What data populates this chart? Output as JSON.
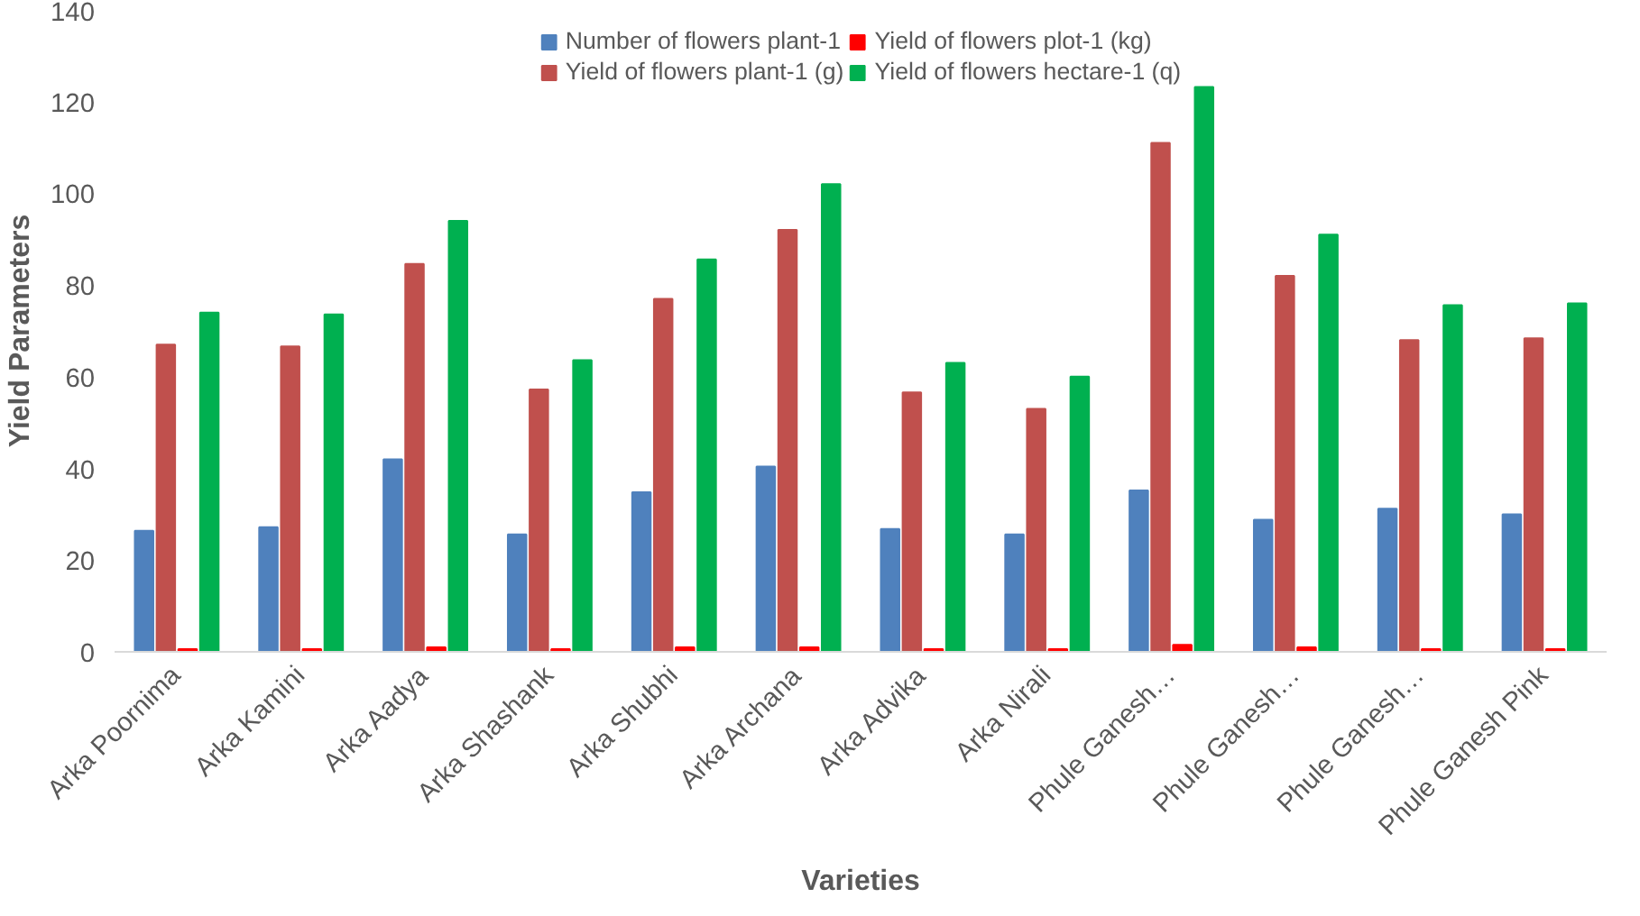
{
  "chart_data": {
    "type": "bar",
    "xlabel": "Varieties",
    "ylabel": "Yield Parameters",
    "categories": [
      "Arka Poornima",
      "Arka Kamini",
      "Arka Aadya",
      "Arka Shashank",
      "Arka Shubhi",
      "Arka Archana",
      "Arka Advika",
      "Arka Nirali",
      "Phule Ganesh…",
      "Phule Ganesh…",
      "Phule Ganesh…",
      "Phule Ganesh Pink"
    ],
    "series": [
      {
        "name": "Number of flowers plant-1",
        "color": "#4f81bd",
        "values": [
          26.4,
          27.2,
          42,
          25.6,
          34.8,
          40.4,
          26.8,
          25.6,
          35.2,
          28.8,
          31.2,
          30
        ]
      },
      {
        "name": "Yield of flowers plant-1 (g)",
        "color": "#c0504d",
        "values": [
          67,
          66.6,
          84.6,
          57.2,
          77,
          92,
          56.6,
          53,
          111,
          82,
          68,
          68.4
        ]
      },
      {
        "name": "Yield of flowers plot-1 (kg)",
        "color": "#ff0000",
        "values": [
          0.6,
          0.6,
          1.0,
          0.6,
          1.0,
          1.0,
          0.6,
          0.6,
          1.5,
          1.0,
          0.6,
          0.6
        ]
      },
      {
        "name": "Yield of flowers hectare-1 (q)",
        "color": "#00b050",
        "values": [
          74,
          73.6,
          94,
          63.6,
          85.6,
          102,
          63,
          60,
          123.2,
          91,
          75.6,
          76
        ]
      }
    ],
    "ylim": [
      0,
      140
    ],
    "yticks": [
      0,
      20,
      40,
      60,
      80,
      100,
      120,
      140
    ],
    "grid": false,
    "legend": "top"
  }
}
